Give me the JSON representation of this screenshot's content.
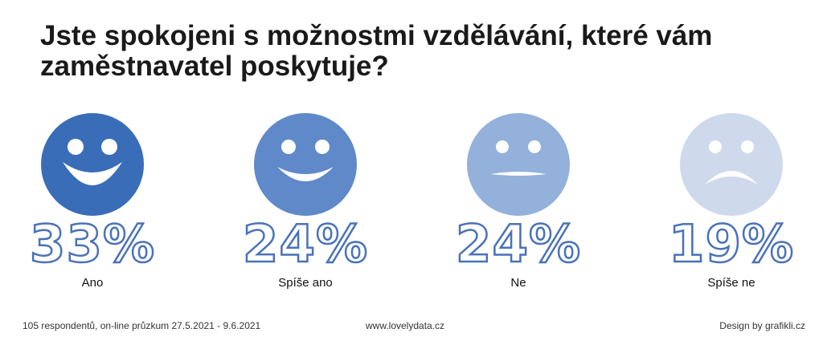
{
  "title": "Jste spokojeni s možnostmi vzdělávání, které vám zaměstnavatel poskytuje?",
  "chart_data": {
    "type": "bar",
    "categories": [
      "Ano",
      "Spíše ano",
      "Ne",
      "Spíše ne"
    ],
    "values": [
      33,
      24,
      24,
      19
    ],
    "value_labels": [
      "33%",
      "24%",
      "24%",
      "19%"
    ],
    "unit": "%",
    "faces": [
      "happy-face-icon",
      "smiling-face-icon",
      "neutral-face-icon",
      "sad-face-icon"
    ],
    "colors": [
      "#3a6db7",
      "#5f89c9",
      "#94b1db",
      "#cedaeb"
    ],
    "title": "Jste spokojeni s možnostmi vzdělávání, které vám zaměstnavatel poskytuje?"
  },
  "footer": {
    "source": "105 respondentů, on-line průzkum 27.5.2021 - 9.6.2021",
    "website": "www.lovelydata.cz",
    "credit": "Design by grafikli.cz"
  }
}
